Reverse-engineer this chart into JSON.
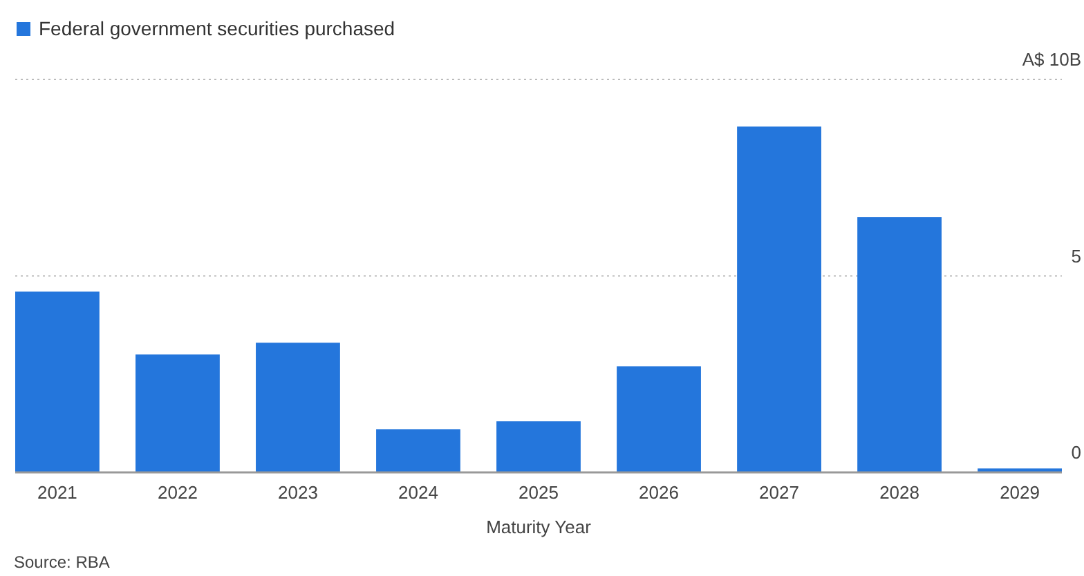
{
  "chart_data": {
    "type": "bar",
    "xlabel": "Maturity Year",
    "annotations": [
      "Source: RBA"
    ],
    "categories": [
      "2021",
      "2022",
      "2023",
      "2024",
      "2025",
      "2026",
      "2027",
      "2028",
      "2029"
    ],
    "series": [
      {
        "name": "Federal government securities purchased",
        "color": "#2476dc",
        "values": [
          4.6,
          3.0,
          3.3,
          1.1,
          1.3,
          2.7,
          8.8,
          6.5,
          0.1
        ]
      }
    ],
    "ylim": [
      0,
      10
    ],
    "yticks": [
      0,
      5,
      {
        "value": 10,
        "label": "A$ 10B"
      }
    ],
    "grid": "y",
    "legend": "top left"
  }
}
